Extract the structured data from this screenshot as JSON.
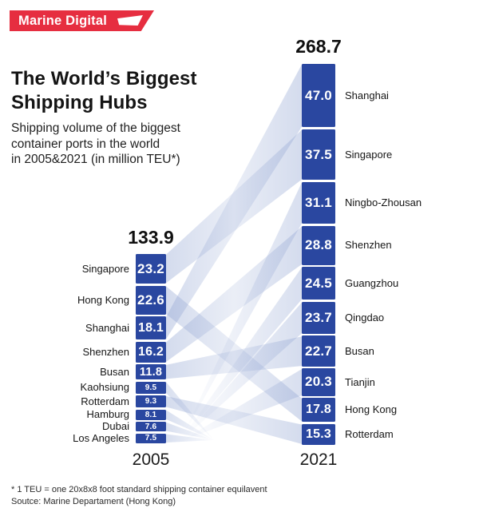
{
  "logo": {
    "brand": "Marine Digital"
  },
  "header": {
    "title_lines": [
      "The World’s Biggest",
      "Shipping Hubs"
    ],
    "subtitle_lines": [
      "Shipping volume of the biggest",
      "container ports in the world",
      "in 2005&2021 (in million TEU*)"
    ]
  },
  "chart_data": {
    "type": "bar",
    "variant": "paired stacked columns with sankey-style flows between 2005 and 2021",
    "title": "The World’s Biggest Shipping Hubs",
    "subtitle": "Shipping volume of the biggest container ports in the world in 2005&2021 (in million TEU*)",
    "unit": "million TEU",
    "categories": [
      "2005",
      "2021"
    ],
    "columns": [
      {
        "year": "2005",
        "total": "133.9",
        "ports": [
          {
            "name": "Singapore",
            "value": 23.2
          },
          {
            "name": "Hong Kong",
            "value": 22.6
          },
          {
            "name": "Shanghai",
            "value": 18.1
          },
          {
            "name": "Shenzhen",
            "value": 16.2
          },
          {
            "name": "Busan",
            "value": 11.8
          },
          {
            "name": "Kaohsiung",
            "value": 9.5
          },
          {
            "name": "Rotterdam",
            "value": 9.3
          },
          {
            "name": "Hamburg",
            "value": 8.1
          },
          {
            "name": "Dubai",
            "value": 7.6
          },
          {
            "name": "Los Angeles",
            "value": 7.5
          }
        ]
      },
      {
        "year": "2021",
        "total": "268.7",
        "ports": [
          {
            "name": "Shanghai",
            "value": 47.0
          },
          {
            "name": "Singapore",
            "value": 37.5
          },
          {
            "name": "Ningbo-Zhousan",
            "value": 31.1
          },
          {
            "name": "Shenzhen",
            "value": 28.8
          },
          {
            "name": "Guangzhou",
            "value": 24.5
          },
          {
            "name": "Qingdao",
            "value": 23.7
          },
          {
            "name": "Busan",
            "value": 22.7
          },
          {
            "name": "Tianjin",
            "value": 20.3
          },
          {
            "name": "Hong Kong",
            "value": 17.8
          },
          {
            "name": "Rotterdam",
            "value": 15.3
          }
        ]
      }
    ],
    "colors": {
      "bar": "#2a47a0",
      "ribbon": "#93a6d3",
      "accent_red": "#e62e40"
    }
  },
  "footer": {
    "note": "* 1 TEU = one 20x8x8 foot standard shipping container equilavent",
    "source": "Soutce: Marine Departament (Hong Kong)"
  }
}
